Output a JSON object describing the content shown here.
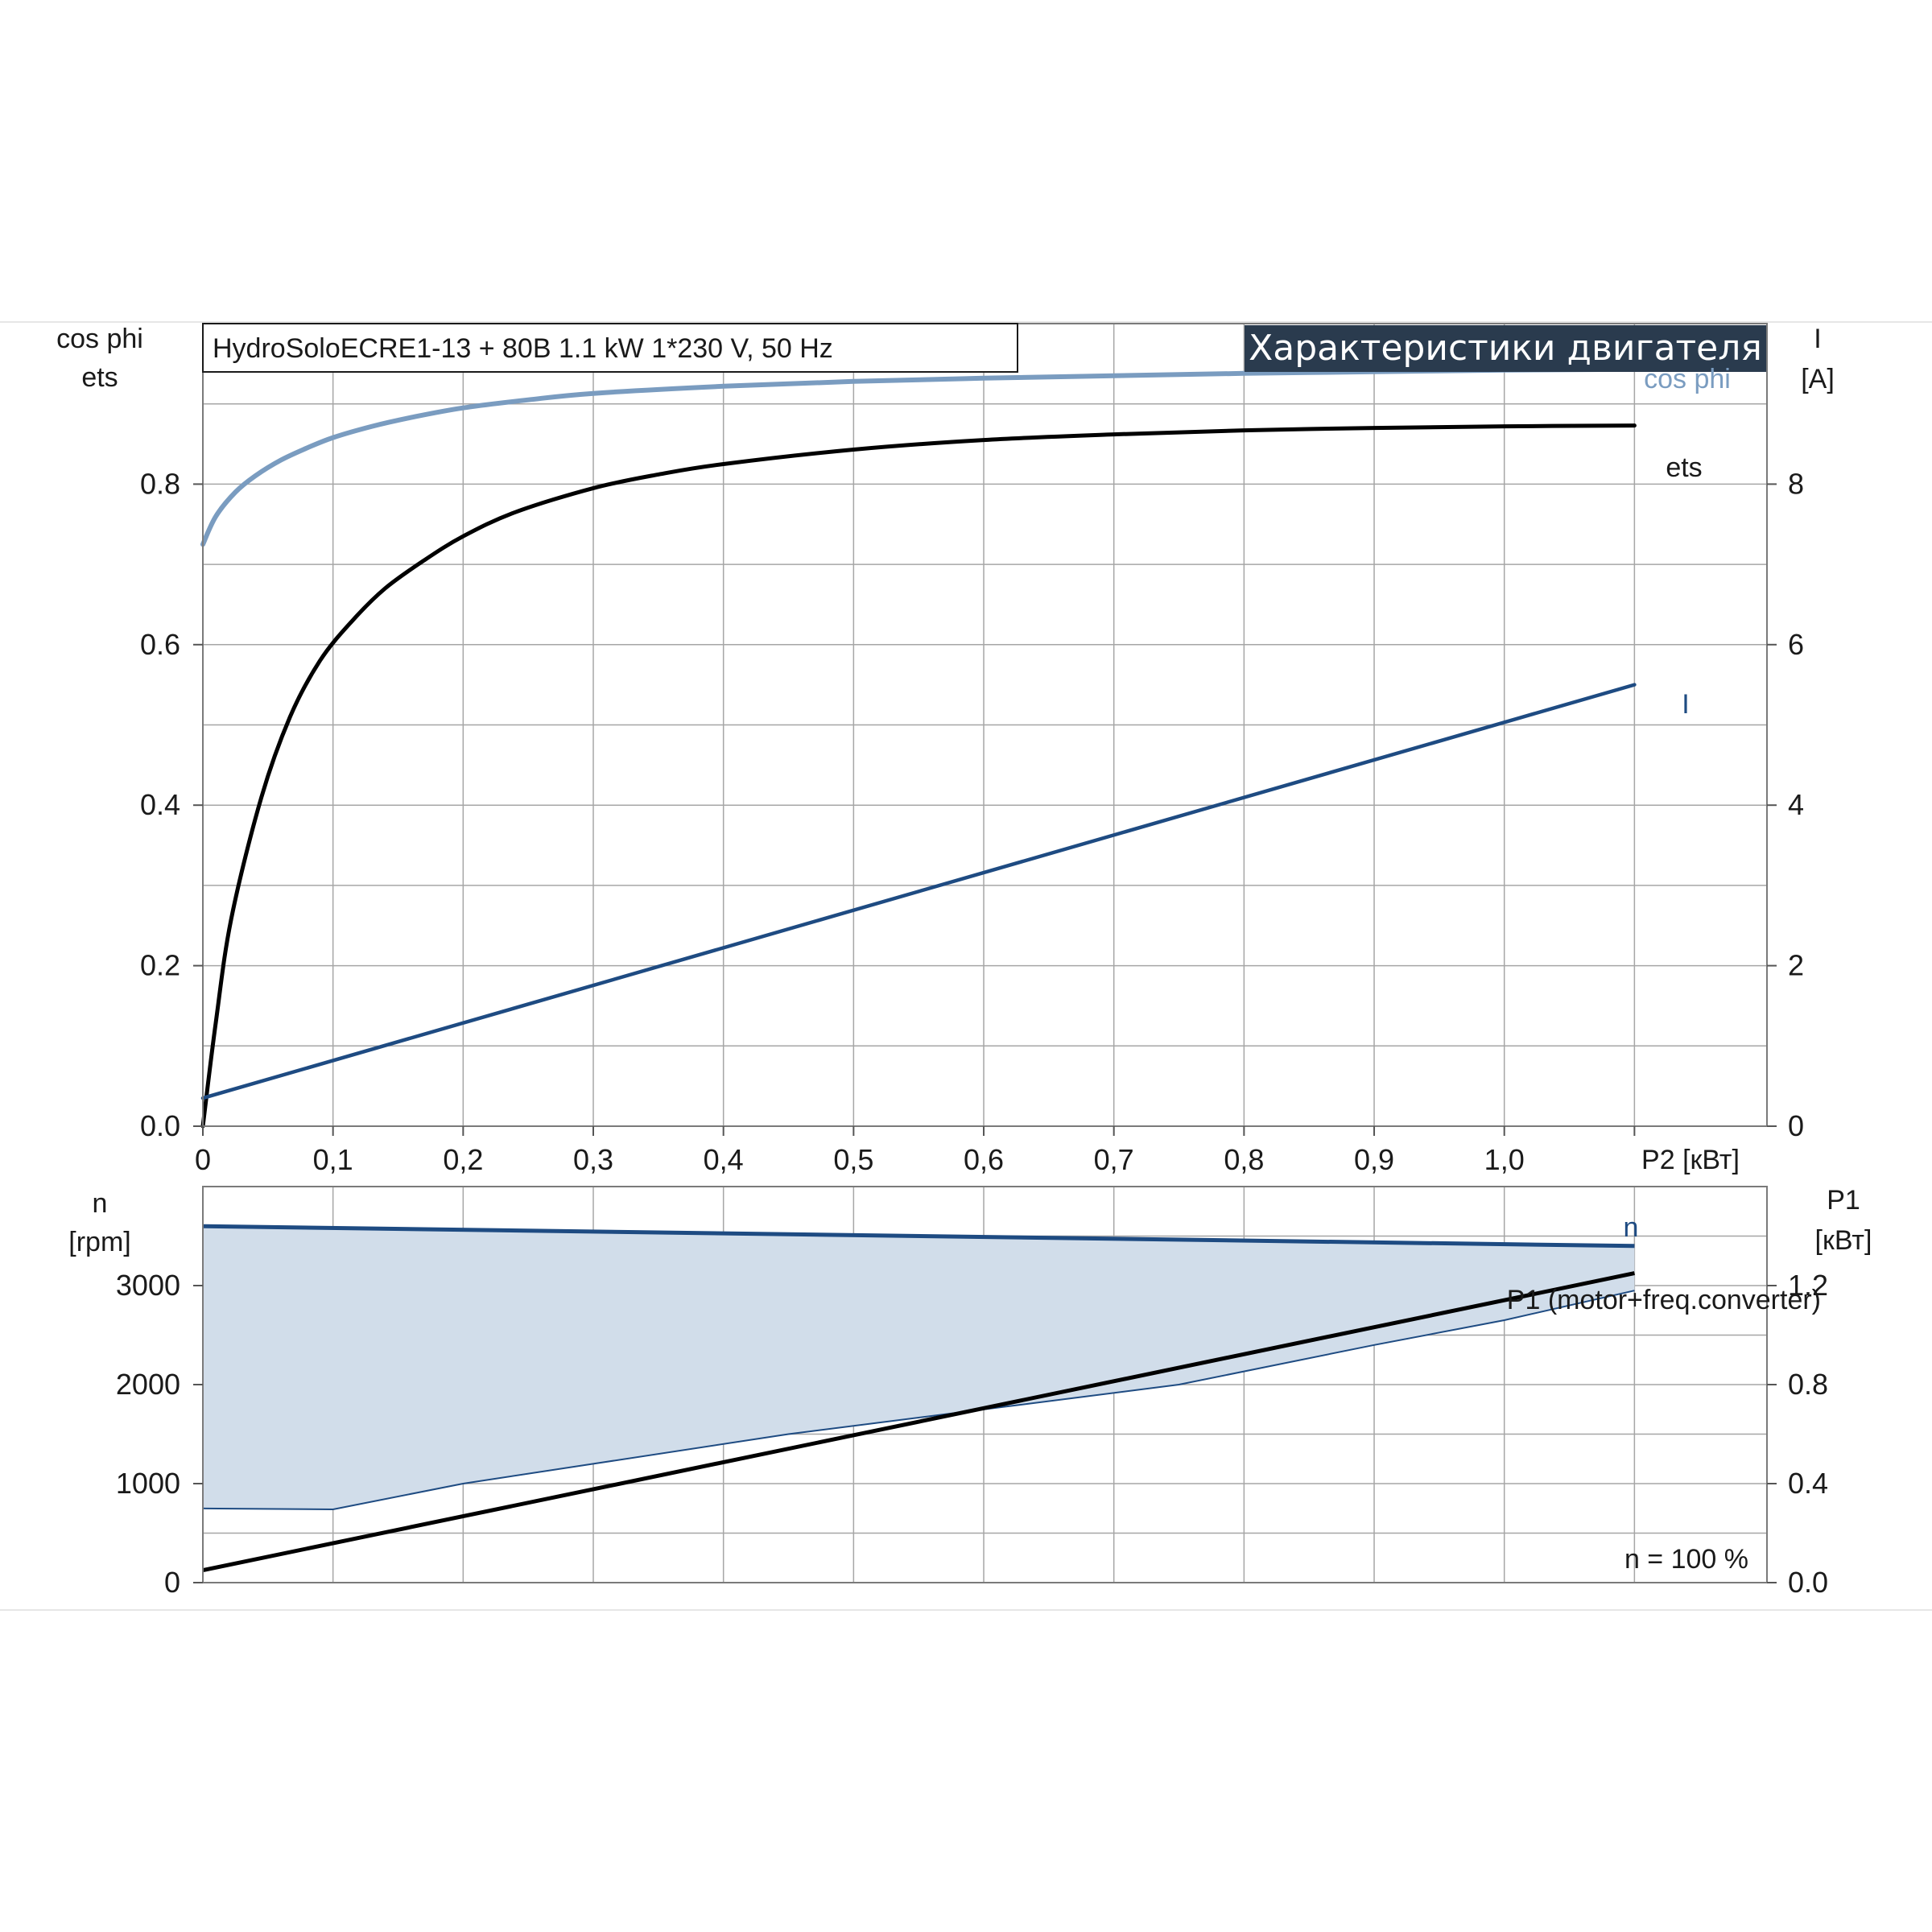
{
  "header": {
    "model": "HydroSoloECRE1-13 + 80B   1.1 kW   1*230 V, 50 Hz",
    "banner": "Характеристики двигателя"
  },
  "colors": {
    "cos_phi": "#7a9cc0",
    "ets": "#000000",
    "current": "#1e4b82",
    "speed": "#1e4b82",
    "band_fill": "#d1ddea",
    "p1": "#000000",
    "grid": "#a6a6a6",
    "banner_bg": "#2a3b4e"
  },
  "chart_data": [
    {
      "type": "line",
      "name": "motor-characteristics",
      "xlabel": "P2 [кВт]",
      "x_ticks": [
        "0",
        "0,1",
        "0,2",
        "0,3",
        "0,4",
        "0,5",
        "0,6",
        "0,7",
        "0,8",
        "0,9",
        "1,0"
      ],
      "xlim": [
        0,
        1.2
      ],
      "grid": true,
      "left_axis": {
        "label_lines": [
          "cos phi",
          "ets"
        ],
        "ticks": [
          "0.0",
          "0.2",
          "0.4",
          "0.6",
          "0.8"
        ],
        "ylim": [
          0,
          1.0
        ]
      },
      "right_axis": {
        "label_lines": [
          "I",
          "[A]"
        ],
        "ticks": [
          "0",
          "2",
          "4",
          "6",
          "8"
        ],
        "ylim": [
          0,
          10
        ]
      },
      "series": [
        {
          "name": "cos phi",
          "axis": "left",
          "x": [
            0,
            0.01,
            0.025,
            0.04,
            0.06,
            0.08,
            0.1,
            0.13,
            0.16,
            0.2,
            0.25,
            0.3,
            0.4,
            0.5,
            0.6,
            0.7,
            0.8,
            0.9,
            1.0,
            1.1
          ],
          "y": [
            0.725,
            0.76,
            0.79,
            0.81,
            0.83,
            0.845,
            0.858,
            0.872,
            0.883,
            0.895,
            0.905,
            0.913,
            0.922,
            0.928,
            0.932,
            0.935,
            0.938,
            0.94,
            0.942,
            0.943
          ]
        },
        {
          "name": "ets",
          "axis": "left",
          "x": [
            0,
            0.01,
            0.022,
            0.045,
            0.067,
            0.09,
            0.115,
            0.14,
            0.17,
            0.2,
            0.24,
            0.3,
            0.35,
            0.4,
            0.5,
            0.6,
            0.7,
            0.8,
            0.9,
            1.0,
            1.1
          ],
          "y": [
            0,
            0.13,
            0.26,
            0.41,
            0.51,
            0.58,
            0.63,
            0.67,
            0.705,
            0.735,
            0.765,
            0.795,
            0.812,
            0.825,
            0.843,
            0.855,
            0.862,
            0.867,
            0.87,
            0.872,
            0.873
          ]
        },
        {
          "name": "I",
          "axis": "right",
          "x": [
            0,
            1.1
          ],
          "y": [
            0.35,
            5.5
          ]
        }
      ]
    },
    {
      "type": "line",
      "name": "speed-and-power",
      "xlim": [
        0,
        1.2
      ],
      "grid": true,
      "annotation": "n = 100 %",
      "left_axis": {
        "label_lines": [
          "n",
          "[rpm]"
        ],
        "ticks": [
          "0",
          "1000",
          "2000",
          "3000"
        ],
        "ylim": [
          0,
          4000
        ]
      },
      "right_axis": {
        "label_lines": [
          "P1",
          "[кВт]"
        ],
        "ticks": [
          "0.0",
          "0.4",
          "0.8",
          "1.2"
        ],
        "ylim": [
          0,
          1.6
        ]
      },
      "series": [
        {
          "name": "n",
          "axis": "left",
          "x": [
            0,
            1.1
          ],
          "y": [
            3600,
            3400
          ]
        },
        {
          "name": "P1 (motor+freq.converter)",
          "axis": "right",
          "x": [
            0,
            1.1
          ],
          "y": [
            0.05,
            1.25
          ]
        }
      ],
      "band": {
        "axis": "left",
        "upper_x": [
          0,
          1.1
        ],
        "upper_y": [
          3600,
          3400
        ],
        "lower_x": [
          0,
          0.1,
          0.2,
          0.3,
          0.45,
          0.6,
          0.75,
          0.9,
          1.0,
          1.1
        ],
        "lower_y": [
          750,
          740,
          1000,
          1200,
          1500,
          1750,
          2000,
          2400,
          2650,
          2950
        ]
      }
    }
  ]
}
